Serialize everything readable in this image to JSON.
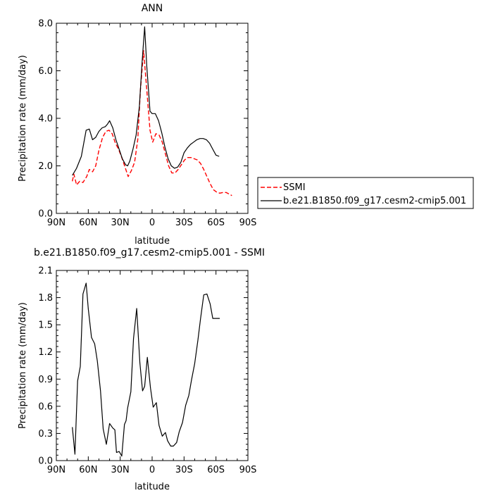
{
  "chart_data": [
    {
      "type": "line",
      "title": "ANN",
      "xlabel": "latitude",
      "ylabel": "Precipitation rate (mm/day)",
      "xticks": [
        "90N",
        "60N",
        "30N",
        "0",
        "30S",
        "60S",
        "90S"
      ],
      "yticks": [
        "0.0",
        "2.0",
        "4.0",
        "6.0",
        "8.0"
      ],
      "xlim": [
        90,
        -90
      ],
      "ylim": [
        0,
        8
      ],
      "legend_position": "right",
      "series": [
        {
          "name": "SSMI",
          "color": "#ff0000",
          "dash": "dashed",
          "x": [
            75,
            73.5,
            71,
            68,
            65,
            61.5,
            59,
            56,
            53,
            50,
            46.5,
            43.5,
            40.5,
            37.5,
            34.5,
            31.5,
            28.5,
            25.5,
            22.5,
            19.5,
            16.5,
            13.5,
            11,
            8,
            5,
            2,
            -0.5,
            -3.5,
            -6.5,
            -9.5,
            -12.5,
            -15.5,
            -18.5,
            -21.5,
            -24.5,
            -27.5,
            -30.5,
            -33.5,
            -36.5,
            -39.5,
            -42.5,
            -45.5,
            -48.5,
            -51.5,
            -54.5,
            -57.5,
            -60.5,
            -63.5,
            -66.5,
            -69.5,
            -72,
            -75
          ],
          "y": [
            1.35,
            1.65,
            1.2,
            1.35,
            1.3,
            1.55,
            1.85,
            1.75,
            2.0,
            2.65,
            3.2,
            3.45,
            3.5,
            3.35,
            2.95,
            2.7,
            2.35,
            1.95,
            1.55,
            1.8,
            2.15,
            3.1,
            5.2,
            6.85,
            5.2,
            3.5,
            3.0,
            3.35,
            3.3,
            3.0,
            2.5,
            2.0,
            1.7,
            1.7,
            1.85,
            2.05,
            2.25,
            2.35,
            2.35,
            2.3,
            2.25,
            2.1,
            1.85,
            1.55,
            1.25,
            1.0,
            0.9,
            0.85,
            0.88,
            0.88,
            0.82,
            0.75
          ]
        },
        {
          "name": "b.e21.B1850.f09_g17.cesm2-cmip5.001",
          "color": "#000000",
          "dash": "solid",
          "x": [
            75,
            71,
            66.5,
            62,
            59,
            56,
            53,
            50,
            47,
            44,
            42,
            40,
            37,
            34,
            31,
            28,
            25,
            23,
            21,
            18,
            15,
            12,
            9.5,
            7,
            5,
            2,
            0,
            -3,
            -6,
            -9,
            -12,
            -15,
            -18,
            -21,
            -24,
            -27,
            -30,
            -33,
            -36,
            -39,
            -42,
            -45,
            -48,
            -51,
            -54,
            -57,
            -60,
            -63
          ],
          "y": [
            1.6,
            1.9,
            2.4,
            3.5,
            3.55,
            3.1,
            3.2,
            3.45,
            3.6,
            3.65,
            3.75,
            3.9,
            3.6,
            3.1,
            2.7,
            2.3,
            2.05,
            2.0,
            2.2,
            2.7,
            3.3,
            4.5,
            6.3,
            7.85,
            6.2,
            4.3,
            4.2,
            4.2,
            3.9,
            3.4,
            2.8,
            2.3,
            2.0,
            1.9,
            1.95,
            2.15,
            2.55,
            2.75,
            2.9,
            3.0,
            3.1,
            3.15,
            3.15,
            3.1,
            2.95,
            2.7,
            2.45,
            2.4
          ]
        }
      ]
    },
    {
      "type": "line",
      "title": "b.e21.B1850.f09_g17.cesm2-cmip5.001 - SSMI",
      "xlabel": "latitude",
      "ylabel": "Precipitation rate (mm/day)",
      "xticks": [
        "90N",
        "60N",
        "30N",
        "0",
        "30S",
        "60S",
        "90S"
      ],
      "yticks": [
        "0.0",
        "0.3",
        "0.6",
        "0.9",
        "1.2",
        "1.5",
        "1.8",
        "2.1"
      ],
      "xlim": [
        90,
        -90
      ],
      "ylim": [
        0,
        2.1
      ],
      "series": [
        {
          "color": "#000000",
          "dash": "solid",
          "x": [
            75,
            72.5,
            70,
            67.5,
            65,
            62,
            60,
            57,
            54,
            51.5,
            48.5,
            46,
            43,
            40,
            37,
            35,
            33.5,
            31,
            28.5,
            26,
            24.5,
            23,
            20,
            17.5,
            14.5,
            11.5,
            9,
            7,
            4.5,
            1.5,
            -1,
            -4,
            -6.5,
            -9.5,
            -12.5,
            -14.5,
            -17.5,
            -20,
            -23,
            -25.5,
            -28.5,
            -31.5,
            -34.5,
            -37,
            -40,
            -43,
            -45.5,
            -48.5,
            -51.5,
            -54.5,
            -57,
            -60.5,
            -63.5
          ],
          "y": [
            0.37,
            0.07,
            0.88,
            1.04,
            1.84,
            1.96,
            1.68,
            1.36,
            1.29,
            1.1,
            0.77,
            0.35,
            0.18,
            0.41,
            0.36,
            0.34,
            0.09,
            0.1,
            0.05,
            0.4,
            0.44,
            0.58,
            0.76,
            1.35,
            1.68,
            1.08,
            0.77,
            0.82,
            1.14,
            0.8,
            0.59,
            0.64,
            0.39,
            0.27,
            0.31,
            0.22,
            0.16,
            0.16,
            0.2,
            0.32,
            0.42,
            0.61,
            0.72,
            0.89,
            1.07,
            1.33,
            1.57,
            1.83,
            1.84,
            1.73,
            1.57,
            1.57,
            1.57
          ]
        }
      ]
    }
  ]
}
